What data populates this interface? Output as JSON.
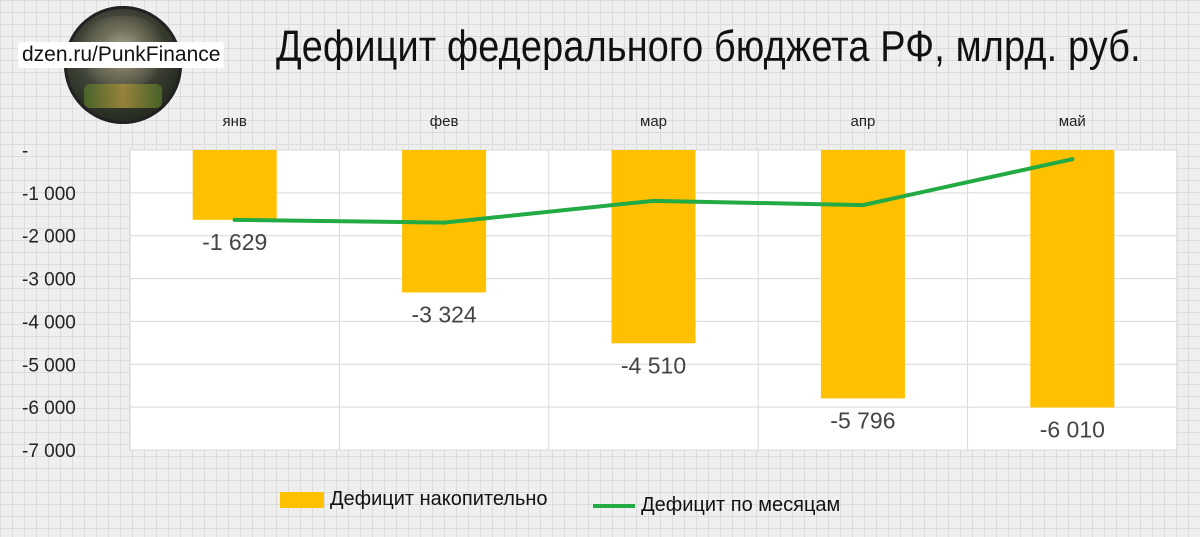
{
  "brand": "dzen.ru/PunkFinance",
  "title": "Дефицит федерального бюджета РФ, млрд. руб.",
  "chart_data": {
    "type": "bar",
    "categories": [
      "янв",
      "фев",
      "мар",
      "апр",
      "май"
    ],
    "series": [
      {
        "name": "Дефицит накопительно",
        "type": "bar",
        "color": "#ffc000",
        "values": [
          -1629,
          -3324,
          -4510,
          -5796,
          -6010
        ],
        "labels": [
          "-1 629",
          "-3 324",
          "-4 510",
          "-5 796",
          "-6 010"
        ]
      },
      {
        "name": "Дефицит по месяцам",
        "type": "line",
        "color": "#22aa44",
        "values": [
          -1629,
          -1695,
          -1186,
          -1286,
          -214
        ]
      }
    ],
    "yticks": [
      0,
      -1000,
      -2000,
      -3000,
      -4000,
      -5000,
      -6000,
      -7000
    ],
    "ytick_labels": [
      "-",
      "-1 000",
      "-2 000",
      "-3 000",
      "-4 000",
      "-5 000",
      "-6 000",
      "-7 000"
    ],
    "ylim": [
      -7000,
      0
    ],
    "x_axis_position": "top",
    "grid": true,
    "legend_position": "bottom"
  }
}
